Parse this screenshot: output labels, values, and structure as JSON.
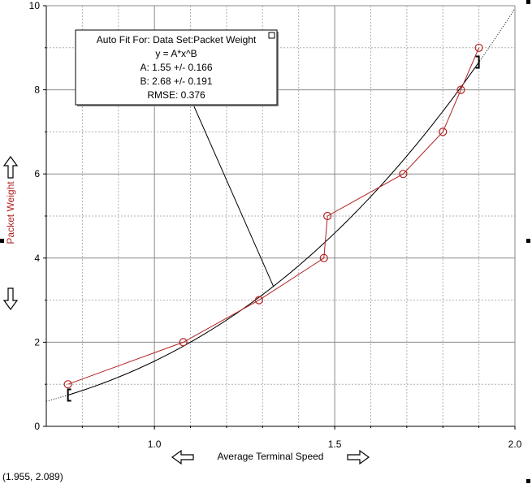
{
  "chart_data": {
    "type": "scatter",
    "xlabel": "Average Terminal Speed",
    "ylabel": "Packet Weight",
    "xlim": [
      0.7,
      2.0
    ],
    "ylim": [
      0,
      10
    ],
    "x_ticks": [
      "1.0",
      "1.5",
      "2.0"
    ],
    "y_ticks": [
      "0",
      "2",
      "4",
      "6",
      "8",
      "10"
    ],
    "grid": true,
    "series": [
      {
        "name": "Packet Weight",
        "color": "#b22222",
        "marker": "open-circle",
        "connected": true,
        "x": [
          0.76,
          1.08,
          1.29,
          1.47,
          1.48,
          1.69,
          1.8,
          1.85,
          1.9
        ],
        "y": [
          1,
          2,
          3,
          4,
          5,
          6,
          7,
          8,
          9
        ]
      }
    ],
    "fit": {
      "lines": [
        "Auto Fit For:  Data Set:Packet Weight",
        "y = A*x^B",
        "A: 1.55 +/- 0.166",
        "B: 2.68 +/- 0.191",
        "RMSE: 0.376"
      ],
      "A": 1.55,
      "B": 2.68,
      "solid_range": [
        0.76,
        1.9
      ],
      "dotted_range": [
        0.7,
        2.0
      ],
      "color": "#000000"
    },
    "bracket_range_x": [
      0.76,
      1.9
    ]
  },
  "readout": "(1.955, 2.089)"
}
